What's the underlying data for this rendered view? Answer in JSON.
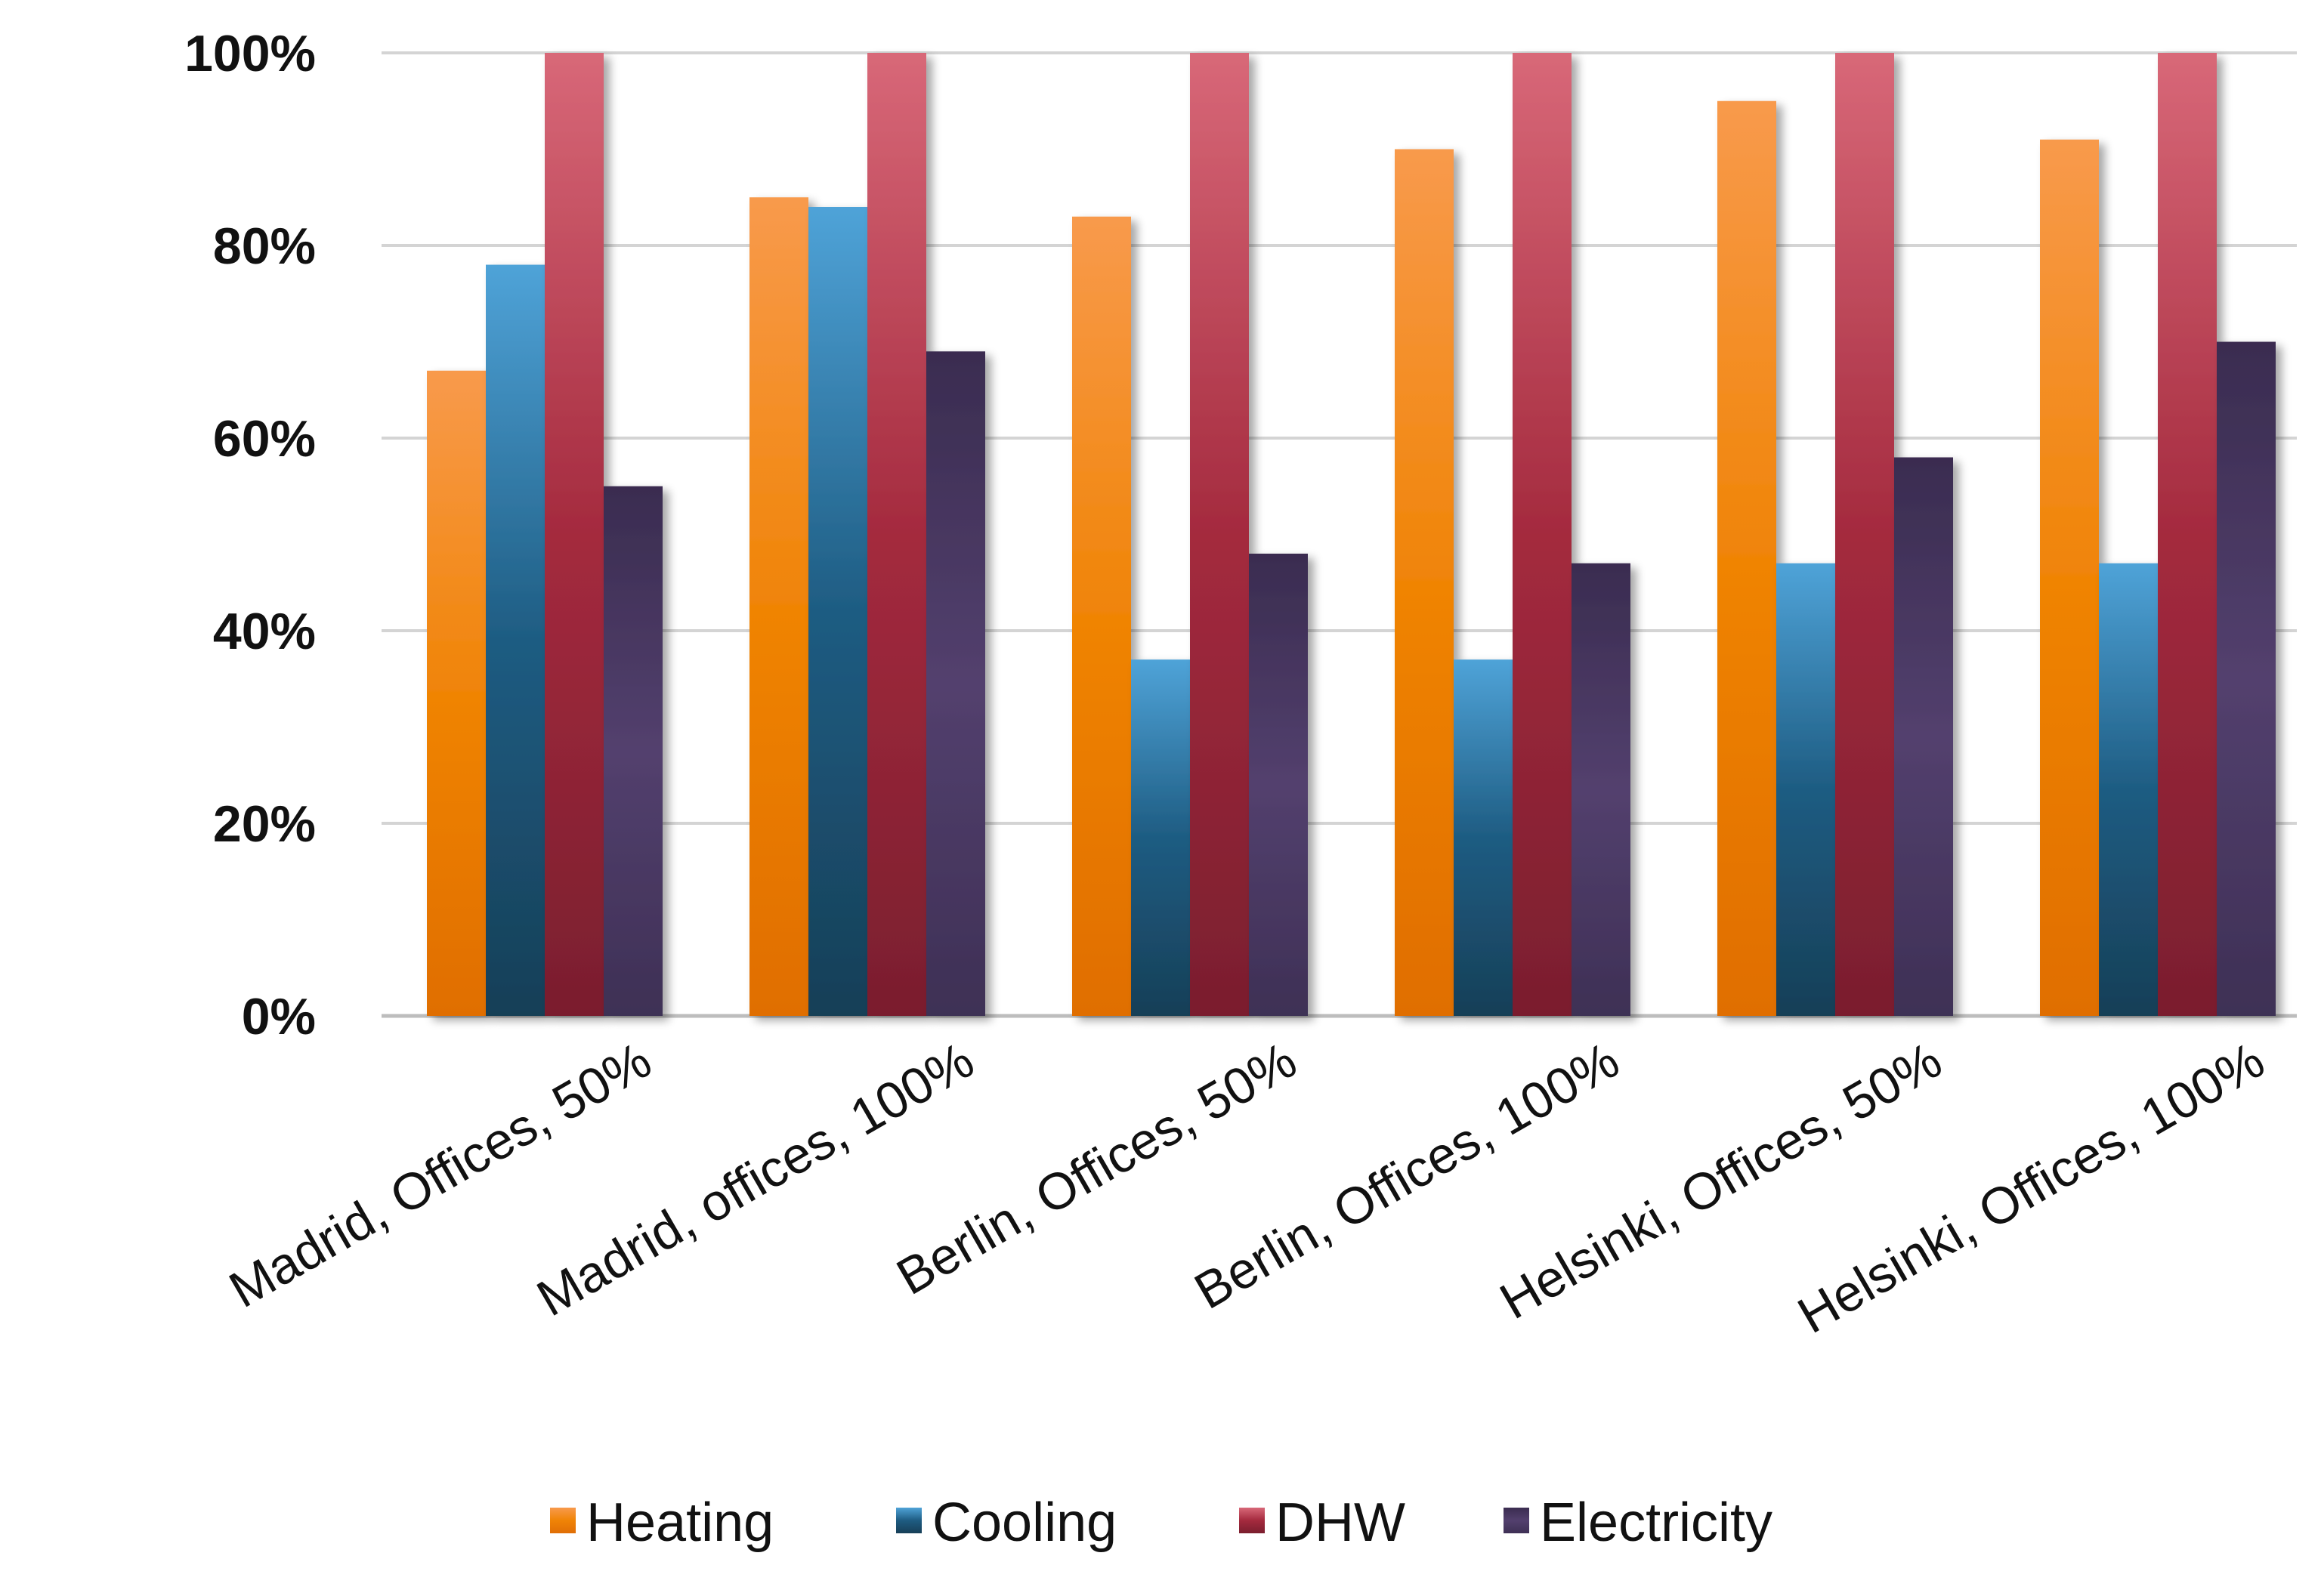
{
  "chart_data": {
    "type": "bar",
    "title": "",
    "xlabel": "",
    "ylabel": "",
    "ylim": [
      0,
      100
    ],
    "y_ticks": [
      "0%",
      "20%",
      "40%",
      "60%",
      "80%",
      "100%"
    ],
    "y_tick_values": [
      0,
      20,
      40,
      60,
      80,
      100
    ],
    "grid": true,
    "legend_position": "bottom",
    "categories": [
      "Madrid, Offices, 50%",
      "Madrid, offices, 100%",
      "Berlin, Offices, 50%",
      "Berlin, Offices, 100%",
      "Helsinki, Offices, 50%",
      "Helsinki, Offices, 100%"
    ],
    "series": [
      {
        "name": "Heating",
        "color": "#F0821E",
        "gradient": [
          "#F89A4C",
          "#F08406",
          "#E06E06"
        ],
        "values": [
          67,
          85,
          83,
          90,
          95,
          91
        ]
      },
      {
        "name": "Cooling",
        "color": "#1F6690",
        "gradient": [
          "#4FA3D8",
          "#1E5C82",
          "#173F57"
        ],
        "values": [
          78,
          84,
          37,
          37,
          47,
          47
        ]
      },
      {
        "name": "DHW",
        "color": "#A8283C",
        "gradient": [
          "#D86878",
          "#A42A3E",
          "#7A1E2E"
        ],
        "values": [
          100,
          100,
          100,
          100,
          100,
          100
        ]
      },
      {
        "name": "Electricity",
        "color": "#4A3A62",
        "gradient": [
          "#3A2C50",
          "#53406E",
          "#3E3055"
        ],
        "values": [
          55,
          69,
          48,
          47,
          58,
          70
        ]
      }
    ]
  }
}
